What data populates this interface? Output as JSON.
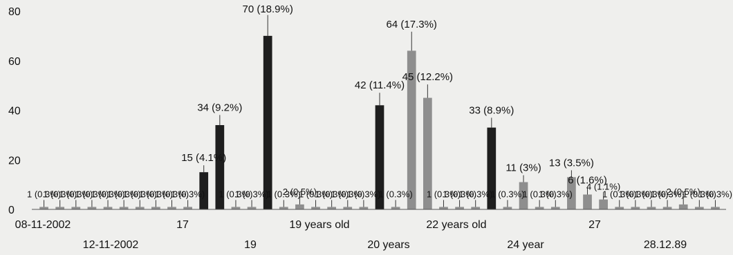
{
  "chart_data": {
    "type": "bar",
    "ylim": [
      0,
      80
    ],
    "yticks": [
      0,
      20,
      40,
      60,
      80
    ],
    "grid": false,
    "legend": "none",
    "colors": {
      "dark": "#1e1e1e",
      "gray": "#8e8e8e",
      "light": "#b3b3b3"
    },
    "x_tick_labels_row1": [
      "08-11-2002",
      "17",
      "19 years old",
      "22 years old",
      "27"
    ],
    "x_tick_labels_row2": [
      "12-11-2002",
      "19",
      "20 years",
      "24 year",
      "28.12.89"
    ],
    "values": [
      1,
      1,
      1,
      1,
      1,
      1,
      1,
      1,
      1,
      1,
      15,
      34,
      1,
      1,
      70,
      1,
      2,
      1,
      1,
      1,
      1,
      42,
      1,
      64,
      45,
      1,
      1,
      1,
      33,
      1,
      11,
      1,
      1,
      13,
      6,
      4,
      1,
      1,
      1,
      1,
      2,
      1,
      1
    ],
    "bar_tones": [
      "gray",
      "gray",
      "gray",
      "gray",
      "gray",
      "gray",
      "gray",
      "gray",
      "gray",
      "gray",
      "dark",
      "dark",
      "gray",
      "gray",
      "dark",
      "gray",
      "gray",
      "gray",
      "gray",
      "gray",
      "gray",
      "dark",
      "gray",
      "gray",
      "gray",
      "gray",
      "gray",
      "gray",
      "dark",
      "gray",
      "gray",
      "gray",
      "gray",
      "gray",
      "gray",
      "gray",
      "gray",
      "gray",
      "gray",
      "gray",
      "gray",
      "gray",
      "gray"
    ],
    "data_labels": [
      "1 (0.3%)",
      "1 (0.3%)",
      "1 (0.3%)",
      "1 (0.3%)",
      "1 (0.3%)",
      "1 (0.3%)",
      "1 (0.3%)",
      "1 (0.3%)",
      "1 (0.3%)",
      "1 (0.3%)",
      "15 (4.1%)",
      "34 (9.2%)",
      "1 (0.3%)",
      "1 (0.3%)",
      "70 (18.9%)",
      "1 (0.3%)",
      "2 (0.5%)",
      "1 (0.3%)",
      "1 (0.3%)",
      "1 (0.3%)",
      "1 (0.3%)",
      "42 (11.4%)",
      "1 (0.3%)",
      "64 (17.3%)",
      "45 (12.2%)",
      "1 (0.3%)",
      "1 (0.3%)",
      "1 (0.3%)",
      "33 (8.9%)",
      "1 (0.3%)",
      "11 (3%)",
      "1 (0.3%)",
      "1 (0.3%)",
      "13 (3.5%)",
      "6 (1.6%)",
      "4 (1.1%)",
      "1 (0.3%)",
      "1 (0.3%)",
      "1 (0.3%)",
      "1 (0.3%)",
      "2 (0.5%)",
      "1 (0.3%)",
      "1 (0.3%)"
    ]
  }
}
